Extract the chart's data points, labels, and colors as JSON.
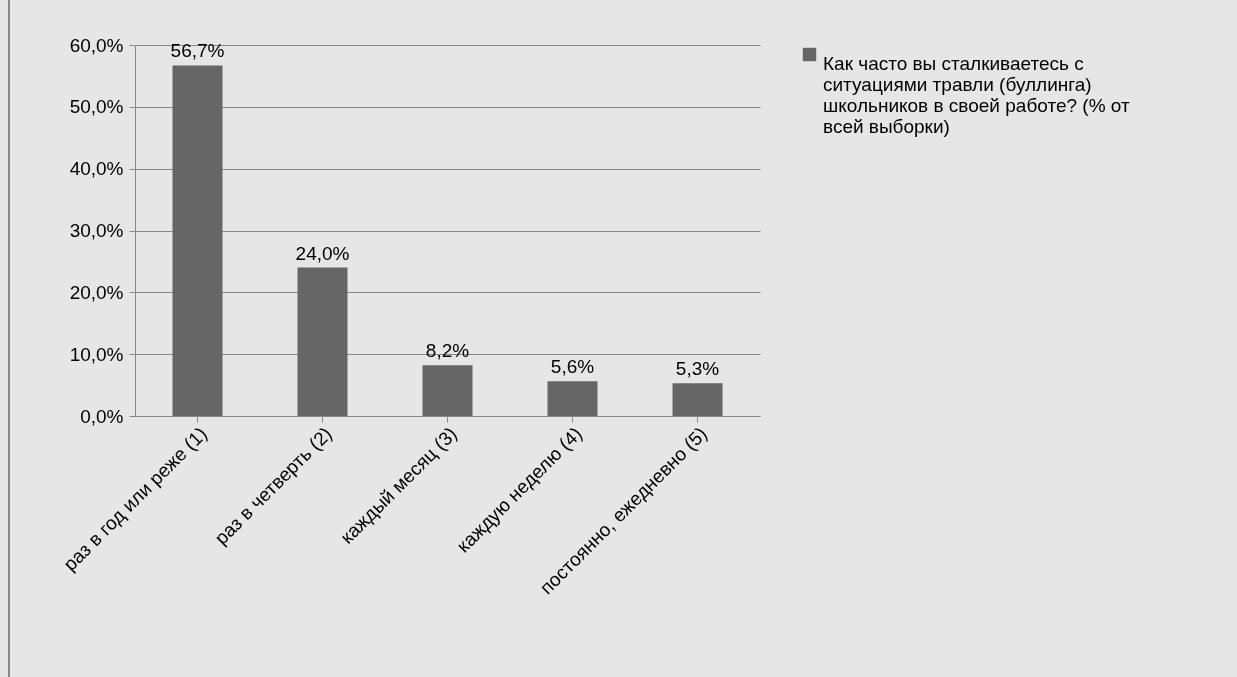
{
  "chart_data": {
    "type": "bar",
    "categories": [
      "раз в год или реже (1)",
      "раз в четверть (2)",
      "каждый месяц (3)",
      "каждую неделю (4)",
      "постоянно, ежедневно (5)"
    ],
    "series": [
      {
        "name": "Как часто вы сталкиваетесь с ситуациями травли (буллинга) школьников в своей работе? (% от всей выборки)",
        "color": "#666666",
        "values": [
          56.7,
          24.0,
          8.2,
          5.6,
          5.3
        ]
      }
    ],
    "value_labels": [
      "56,7%",
      "24,0%",
      "8,2%",
      "5,6%",
      "5,3%"
    ],
    "ylim": [
      0,
      60
    ],
    "yticks": [
      {
        "value": 0,
        "label": "0,0%"
      },
      {
        "value": 10,
        "label": "10,0%"
      },
      {
        "value": 20,
        "label": "20,0%"
      },
      {
        "value": 30,
        "label": "30,0%"
      },
      {
        "value": 40,
        "label": "40,0%"
      },
      {
        "value": 50,
        "label": "50,0%"
      },
      {
        "value": 60,
        "label": "60,0%"
      }
    ],
    "grid": "y",
    "legend": "right"
  }
}
